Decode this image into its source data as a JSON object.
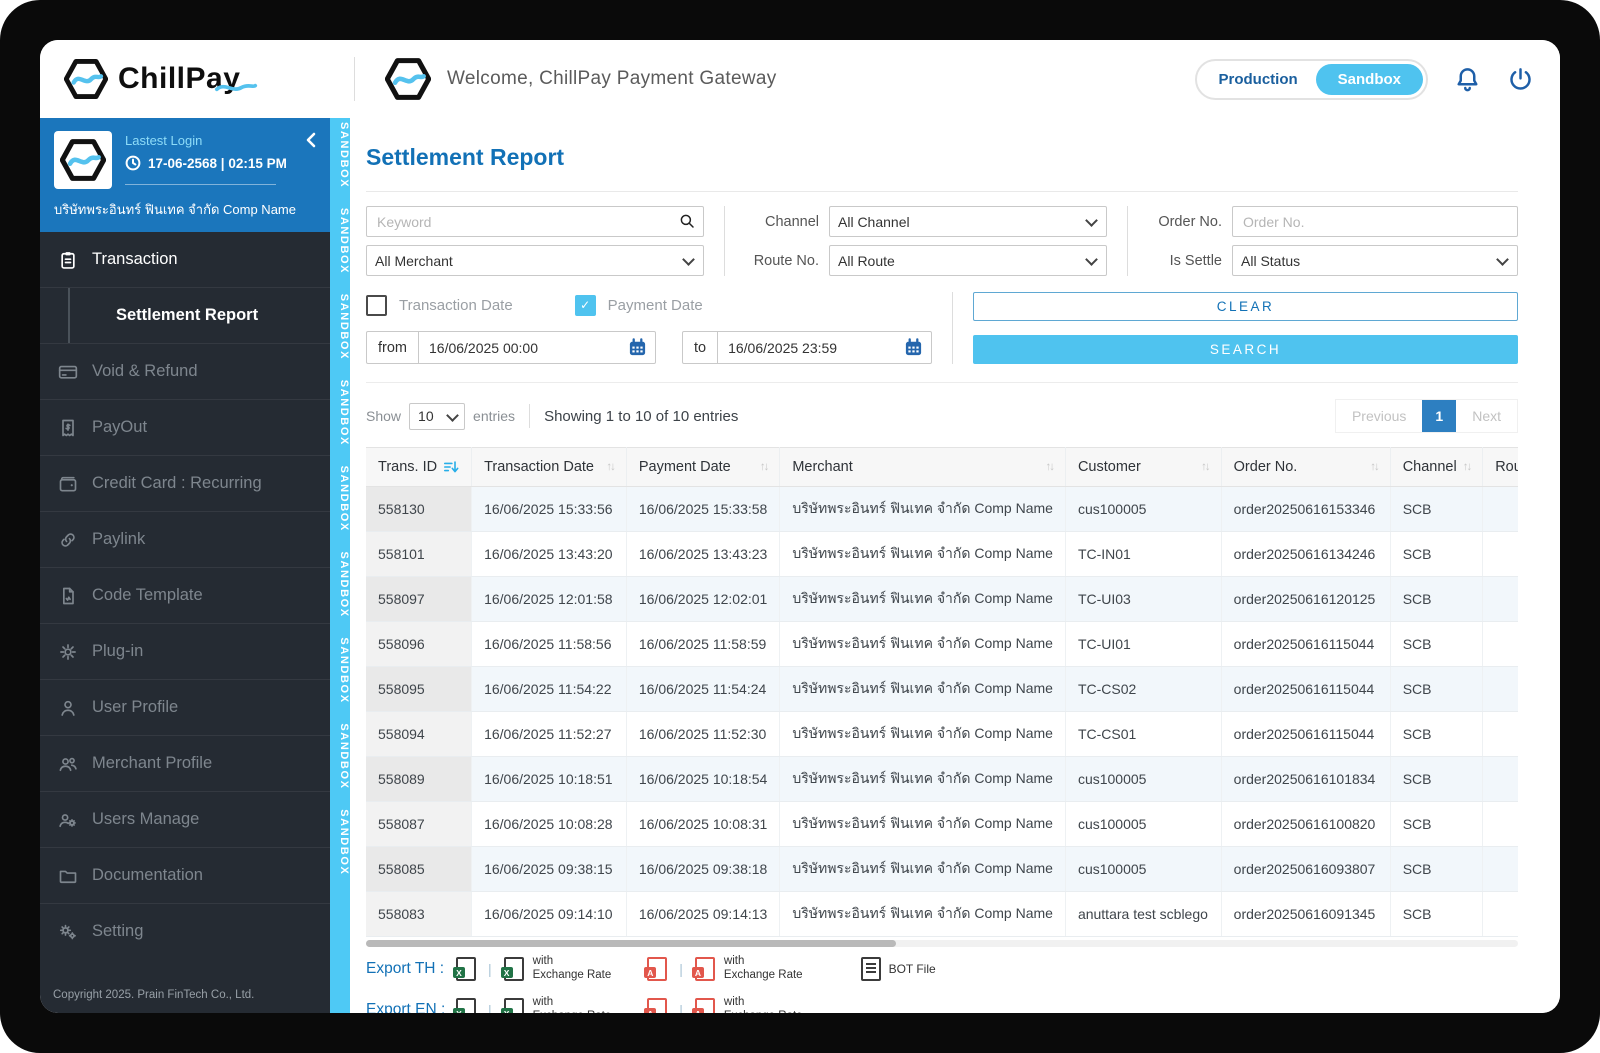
{
  "colors": {
    "accent_blue": "#1271b6",
    "light_blue": "#4fc3ef",
    "sidebar_dark": "#252b33",
    "user_panel_blue": "#1b76bc"
  },
  "header": {
    "brand": "ChillPay",
    "welcome": "Welcome, ChillPay Payment Gateway",
    "env": {
      "production": "Production",
      "sandbox": "Sandbox",
      "active": "sandbox"
    }
  },
  "sandbox_strip": "SANDBOX",
  "sidebar": {
    "lastest_login_label": "Lastest Login",
    "login_datetime": "17-06-2568 | 02:15 PM",
    "company": "บริษัทพระอินทร์ ฟินเทค จำกัด Comp Name",
    "menu": [
      {
        "id": "transaction",
        "label": "Transaction",
        "icon": "clipboard",
        "active": true
      },
      {
        "id": "settlement-report",
        "label": "Settlement Report",
        "sub": true,
        "active": true
      },
      {
        "id": "void-refund",
        "label": "Void & Refund",
        "icon": "card"
      },
      {
        "id": "payout",
        "label": "PayOut",
        "icon": "receipt"
      },
      {
        "id": "credit-card-recurring",
        "label": "Credit Card : Recurring",
        "icon": "wallet"
      },
      {
        "id": "paylink",
        "label": "Paylink",
        "icon": "link"
      },
      {
        "id": "code-template",
        "label": "Code Template",
        "icon": "file"
      },
      {
        "id": "plug-in",
        "label": "Plug-in",
        "icon": "gear"
      },
      {
        "id": "user-profile",
        "label": "User Profile",
        "icon": "user"
      },
      {
        "id": "merchant-profile",
        "label": "Merchant Profile",
        "icon": "users"
      },
      {
        "id": "users-manage",
        "label": "Users Manage",
        "icon": "users-gear"
      },
      {
        "id": "documentation",
        "label": "Documentation",
        "icon": "folder"
      },
      {
        "id": "setting",
        "label": "Setting",
        "icon": "gears"
      }
    ],
    "copyright": "Copyright 2025. Prain FinTech Co., Ltd."
  },
  "page": {
    "title": "Settlement Report",
    "filters": {
      "keyword_placeholder": "Keyword",
      "merchant_value": "All Merchant",
      "channel_label": "Channel",
      "channel_value": "All Channel",
      "route_label": "Route No.",
      "route_value": "All Route",
      "order_label": "Order No.",
      "order_placeholder": "Order No.",
      "settle_label": "Is Settle",
      "settle_value": "All Status",
      "transaction_date_label": "Transaction Date",
      "transaction_date_checked": false,
      "payment_date_label": "Payment Date",
      "payment_date_checked": true,
      "from_label": "from",
      "from_value": "16/06/2025 00:00",
      "to_label": "to",
      "to_value": "16/06/2025 23:59",
      "clear_label": "CLEAR",
      "search_label": "SEARCH"
    },
    "table": {
      "show_label": "Show",
      "page_size": "10",
      "entries_label": "entries",
      "showing_text": "Showing 1 to 10 of 10 entries",
      "pagination": {
        "previous": "Previous",
        "current": "1",
        "next": "Next"
      },
      "columns": [
        {
          "label": "Trans. ID",
          "sort": "desc-active"
        },
        {
          "label": "Transaction Date",
          "sort": "both"
        },
        {
          "label": "Payment Date",
          "sort": "both"
        },
        {
          "label": "Merchant",
          "sort": "both"
        },
        {
          "label": "Customer",
          "sort": "both"
        },
        {
          "label": "Order No.",
          "sort": "both"
        },
        {
          "label": "Channel",
          "sort": "both"
        },
        {
          "label": "Route No.",
          "sort": "both"
        }
      ],
      "rows": [
        [
          "558130",
          "16/06/2025 15:33:56",
          "16/06/2025 15:33:58",
          "บริษัทพระอินทร์ ฟินเทค จำกัด Comp Name",
          "cus100005",
          "order20250616153346",
          "SCB",
          ""
        ],
        [
          "558101",
          "16/06/2025 13:43:20",
          "16/06/2025 13:43:23",
          "บริษัทพระอินทร์ ฟินเทค จำกัด Comp Name",
          "TC-IN01",
          "order20250616134246",
          "SCB",
          ""
        ],
        [
          "558097",
          "16/06/2025 12:01:58",
          "16/06/2025 12:02:01",
          "บริษัทพระอินทร์ ฟินเทค จำกัด Comp Name",
          "TC-UI03",
          "order20250616120125",
          "SCB",
          ""
        ],
        [
          "558096",
          "16/06/2025 11:58:56",
          "16/06/2025 11:58:59",
          "บริษัทพระอินทร์ ฟินเทค จำกัด Comp Name",
          "TC-UI01",
          "order20250616115044",
          "SCB",
          ""
        ],
        [
          "558095",
          "16/06/2025 11:54:22",
          "16/06/2025 11:54:24",
          "บริษัทพระอินทร์ ฟินเทค จำกัด Comp Name",
          "TC-CS02",
          "order20250616115044",
          "SCB",
          ""
        ],
        [
          "558094",
          "16/06/2025 11:52:27",
          "16/06/2025 11:52:30",
          "บริษัทพระอินทร์ ฟินเทค จำกัด Comp Name",
          "TC-CS01",
          "order20250616115044",
          "SCB",
          ""
        ],
        [
          "558089",
          "16/06/2025 10:18:51",
          "16/06/2025 10:18:54",
          "บริษัทพระอินทร์ ฟินเทค จำกัด Comp Name",
          "cus100005",
          "order20250616101834",
          "SCB",
          ""
        ],
        [
          "558087",
          "16/06/2025 10:08:28",
          "16/06/2025 10:08:31",
          "บริษัทพระอินทร์ ฟินเทค จำกัด Comp Name",
          "cus100005",
          "order20250616100820",
          "SCB",
          ""
        ],
        [
          "558085",
          "16/06/2025 09:38:15",
          "16/06/2025 09:38:18",
          "บริษัทพระอินทร์ ฟินเทค จำกัด Comp Name",
          "cus100005",
          "order20250616093807",
          "SCB",
          ""
        ],
        [
          "558083",
          "16/06/2025 09:14:10",
          "16/06/2025 09:14:13",
          "บริษัทพระอินทร์ ฟินเทค จำกัด Comp Name",
          "anuttara test scblego",
          "order20250616091345",
          "SCB",
          ""
        ]
      ]
    },
    "export": {
      "th_label": "Export TH :",
      "en_label": "Export EN :",
      "with_exchange_rate_line1": "with",
      "with_exchange_rate_line2": "Exchange Rate",
      "bot_file": "BOT File"
    }
  }
}
